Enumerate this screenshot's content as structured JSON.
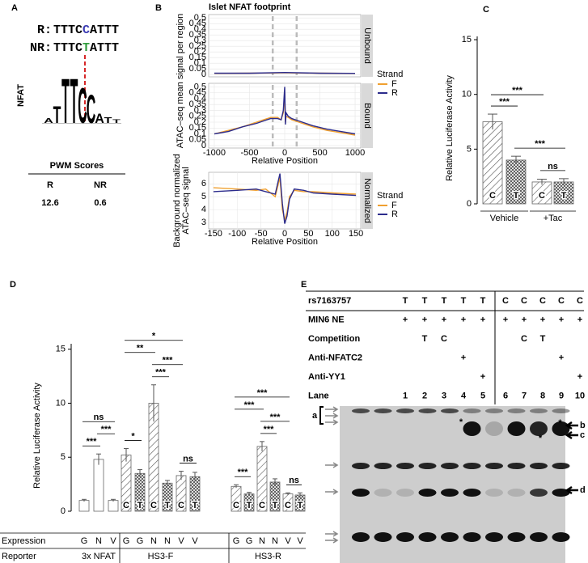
{
  "panel_labels": [
    "A",
    "B",
    "C",
    "D",
    "E"
  ],
  "panel_a": {
    "motif": "NFAT",
    "sequences": [
      {
        "label": "R:",
        "before": "TTTC",
        "variant": "C",
        "after": "ATTT",
        "color": "#3b3bb3"
      },
      {
        "label": "NR:",
        "before": "TTTC",
        "variant": "T",
        "after": "ATTT",
        "color": "#2e9a3a"
      }
    ],
    "logo": [
      {
        "letter": "A",
        "bits": 0.2,
        "color": "#c0392b"
      },
      {
        "letter": "T",
        "bits": 0.7,
        "color": "#2e7d32"
      },
      {
        "letter": "T",
        "bits": 1.9,
        "color": "#2e7d32"
      },
      {
        "letter": "T",
        "bits": 1.9,
        "color": "#2e7d32"
      },
      {
        "letter": "C",
        "bits": 1.5,
        "color": "#2a3fbf"
      },
      {
        "letter": "C",
        "bits": 1.2,
        "color": "#2a3fbf"
      },
      {
        "letter": "A",
        "bits": 0.4,
        "color": "#c0392b"
      },
      {
        "letter": "T",
        "bits": 0.25,
        "color": "#2e7d32"
      },
      {
        "letter": "T",
        "bits": 0.15,
        "color": "#2e7d32"
      }
    ],
    "pwm": {
      "title": "PWM Scores",
      "columns": [
        "R",
        "NR"
      ],
      "scores": [
        12.6,
        0.6
      ],
      "colors": [
        "#3b3bb3",
        "#2e9a3a"
      ]
    }
  },
  "chart_data": [
    {
      "type": "line",
      "title": "Islet NFAT footprint",
      "facet": "Unbound",
      "ylabel": "ATAC–seq mean signal per region",
      "legend_title": "Strand",
      "x": [
        -1000,
        -500,
        0,
        500,
        1000
      ],
      "series": [
        {
          "name": "F",
          "color": "#f0a030",
          "values": [
            0.01,
            0.012,
            0.015,
            0.012,
            0.01
          ]
        },
        {
          "name": "R",
          "color": "#2c2c8c",
          "values": [
            0.012,
            0.012,
            0.018,
            0.012,
            0.011
          ]
        }
      ],
      "xlim": [
        -1080,
        1080
      ],
      "ylim": [
        -0.02,
        0.53
      ],
      "yticks": [
        0,
        0.05,
        0.1,
        0.15,
        0.2,
        0.25,
        0.3,
        0.35,
        0.4,
        0.45,
        0.5
      ],
      "vlines": [
        -170,
        170
      ]
    },
    {
      "type": "line",
      "facet": "Bound",
      "xlabel": "Relative Position",
      "x": [
        -1000,
        -800,
        -600,
        -400,
        -300,
        -200,
        -100,
        -50,
        -20,
        0,
        10,
        20,
        50,
        100,
        200,
        300,
        400,
        600,
        800,
        1000
      ],
      "series": [
        {
          "name": "F",
          "color": "#f0a030",
          "values": [
            0.1,
            0.13,
            0.16,
            0.2,
            0.22,
            0.24,
            0.24,
            0.22,
            0.28,
            0.45,
            0.2,
            0.25,
            0.24,
            0.22,
            0.2,
            0.18,
            0.16,
            0.13,
            0.11,
            0.09
          ]
        },
        {
          "name": "R",
          "color": "#2c2c8c",
          "values": [
            0.1,
            0.12,
            0.16,
            0.19,
            0.21,
            0.23,
            0.23,
            0.22,
            0.3,
            0.5,
            0.18,
            0.28,
            0.25,
            0.23,
            0.21,
            0.19,
            0.17,
            0.14,
            0.12,
            0.1
          ]
        }
      ],
      "xlim": [
        -1080,
        1080
      ],
      "ylim": [
        -0.02,
        0.53
      ],
      "xticks": [
        -1000,
        -500,
        0,
        500,
        1000
      ],
      "yticks": [
        0,
        0.05,
        0.1,
        0.15,
        0.2,
        0.25,
        0.3,
        0.35,
        0.4,
        0.45,
        0.5
      ],
      "vlines": [
        -170,
        170
      ]
    },
    {
      "type": "line",
      "facet": "Normalized",
      "xlabel": "Relative Position",
      "ylabel_lines": [
        "Background normalized",
        "ATAC–seq signal"
      ],
      "legend_title": "Strand",
      "x": [
        -150,
        -100,
        -60,
        -40,
        -20,
        -10,
        -5,
        0,
        5,
        10,
        20,
        40,
        60,
        100,
        150
      ],
      "series": [
        {
          "name": "F",
          "color": "#f0a030",
          "values": [
            5.7,
            5.6,
            5.5,
            5.6,
            5.0,
            6.5,
            4.0,
            3.2,
            3.8,
            5.0,
            5.5,
            5.4,
            5.4,
            5.3,
            5.2
          ]
        },
        {
          "name": "R",
          "color": "#2c2c8c",
          "values": [
            5.4,
            5.5,
            5.6,
            5.4,
            5.2,
            6.8,
            4.5,
            2.9,
            3.5,
            4.8,
            5.6,
            5.5,
            5.3,
            5.2,
            5.1
          ]
        }
      ],
      "xlim": [
        -160,
        160
      ],
      "ylim": [
        2.5,
        6.9
      ],
      "xticks": [
        -150,
        -100,
        -50,
        0,
        50,
        100,
        150
      ],
      "yticks": [
        3,
        4,
        5,
        6
      ]
    },
    {
      "type": "bar",
      "ylabel": "Relative Luciferase Activity",
      "categories": [
        "C",
        "T",
        "C",
        "T"
      ],
      "values": [
        7.5,
        4.0,
        2.0,
        2.0
      ],
      "errors": [
        0.7,
        0.35,
        0.25,
        0.3
      ],
      "patterns": [
        "diag",
        "cross",
        "diag",
        "cross"
      ],
      "groups": [
        {
          "label": "Vehicle",
          "start": 0,
          "end": 1
        },
        {
          "label": "+Tac",
          "start": 2,
          "end": 3
        }
      ],
      "significance": [
        {
          "label": "***",
          "from": 0,
          "to": 1
        },
        {
          "label": "***",
          "from": 0,
          "to": 2
        },
        {
          "label": "ns",
          "from": 2,
          "to": 3
        },
        {
          "label": "***",
          "from": 1,
          "to": 3
        }
      ],
      "ylim": [
        0,
        15.3
      ],
      "yticks": [
        0,
        5,
        10,
        15
      ]
    },
    {
      "type": "bar",
      "ylabel": "Relative Luciferase Activity",
      "row_labels": [
        "Expression",
        "Reporter"
      ],
      "categories": [
        "G",
        "N",
        "V",
        "G",
        "G",
        "N",
        "N",
        "V",
        "V",
        "G",
        "G",
        "N",
        "N",
        "V",
        "V"
      ],
      "alleles": [
        null,
        null,
        null,
        "C",
        "T",
        "C",
        "T",
        "C",
        "T",
        "C",
        "T",
        "C",
        "T",
        "C",
        "T"
      ],
      "values": [
        1.0,
        4.8,
        1.0,
        5.2,
        3.5,
        10.0,
        2.6,
        3.3,
        3.2,
        2.3,
        1.6,
        6.0,
        2.7,
        1.6,
        1.5
      ],
      "errors": [
        0.1,
        0.5,
        0.1,
        0.6,
        0.35,
        1.7,
        0.25,
        0.4,
        0.4,
        0.15,
        0.15,
        0.45,
        0.3,
        0.1,
        0.2
      ],
      "patterns": [
        "none",
        "none",
        "none",
        "diag",
        "cross",
        "diag",
        "cross",
        "diag",
        "cross",
        "diag",
        "cross",
        "diag",
        "cross",
        "diag",
        "cross"
      ],
      "groups": [
        {
          "label": "3x NFAT",
          "start": 0,
          "end": 2
        },
        {
          "label": "HS3-F",
          "start": 3,
          "end": 8
        },
        {
          "label": "HS3-R",
          "start": 9,
          "end": 14
        }
      ],
      "significance": [
        {
          "label": "***",
          "from": 0,
          "to": 1
        },
        {
          "label": "***",
          "from": 1,
          "to": 2
        },
        {
          "label": "ns",
          "from": 0,
          "to": 2
        },
        {
          "label": "*",
          "from": 3,
          "to": 4
        },
        {
          "label": "***",
          "from": 5,
          "to": 6
        },
        {
          "label": "***",
          "from": 5,
          "to": 7
        },
        {
          "label": "ns",
          "from": 7,
          "to": 8
        },
        {
          "label": "**",
          "from": 3,
          "to": 5
        },
        {
          "label": "*",
          "from": 3,
          "to": 7
        },
        {
          "label": "***",
          "from": 9,
          "to": 10
        },
        {
          "label": "***",
          "from": 11,
          "to": 12
        },
        {
          "label": "ns",
          "from": 13,
          "to": 14
        },
        {
          "label": "***",
          "from": 11,
          "to": 13
        },
        {
          "label": "***",
          "from": 9,
          "to": 11
        },
        {
          "label": "***",
          "from": 9,
          "to": 13
        }
      ],
      "ylim": [
        0,
        15.5
      ],
      "yticks": [
        0,
        5,
        10,
        15
      ]
    }
  ],
  "panel_e": {
    "rows": [
      {
        "label": "rs7163757",
        "cells": [
          "T",
          "T",
          "T",
          "T",
          "T",
          "C",
          "C",
          "C",
          "C",
          "C"
        ]
      },
      {
        "label": "MIN6 NE",
        "cells": [
          "+",
          "+",
          "+",
          "+",
          "+",
          "+",
          "+",
          "+",
          "+",
          "+"
        ]
      },
      {
        "label": "Competition",
        "cells": [
          null,
          "T",
          "C",
          null,
          null,
          null,
          "C",
          "T",
          null,
          null
        ]
      },
      {
        "label": "Anti-NFATC2",
        "cells": [
          null,
          null,
          null,
          "+",
          null,
          null,
          null,
          null,
          "+",
          null
        ]
      },
      {
        "label": "Anti-YY1",
        "cells": [
          null,
          null,
          null,
          null,
          "+",
          null,
          null,
          null,
          null,
          "+"
        ]
      },
      {
        "label": "Lane",
        "cells": [
          1,
          2,
          3,
          4,
          5,
          6,
          7,
          8,
          9,
          10
        ]
      }
    ],
    "gel_labels": [
      "a",
      "b",
      "c",
      "d"
    ],
    "asterisks": [
      "*",
      "*",
      "*"
    ]
  }
}
